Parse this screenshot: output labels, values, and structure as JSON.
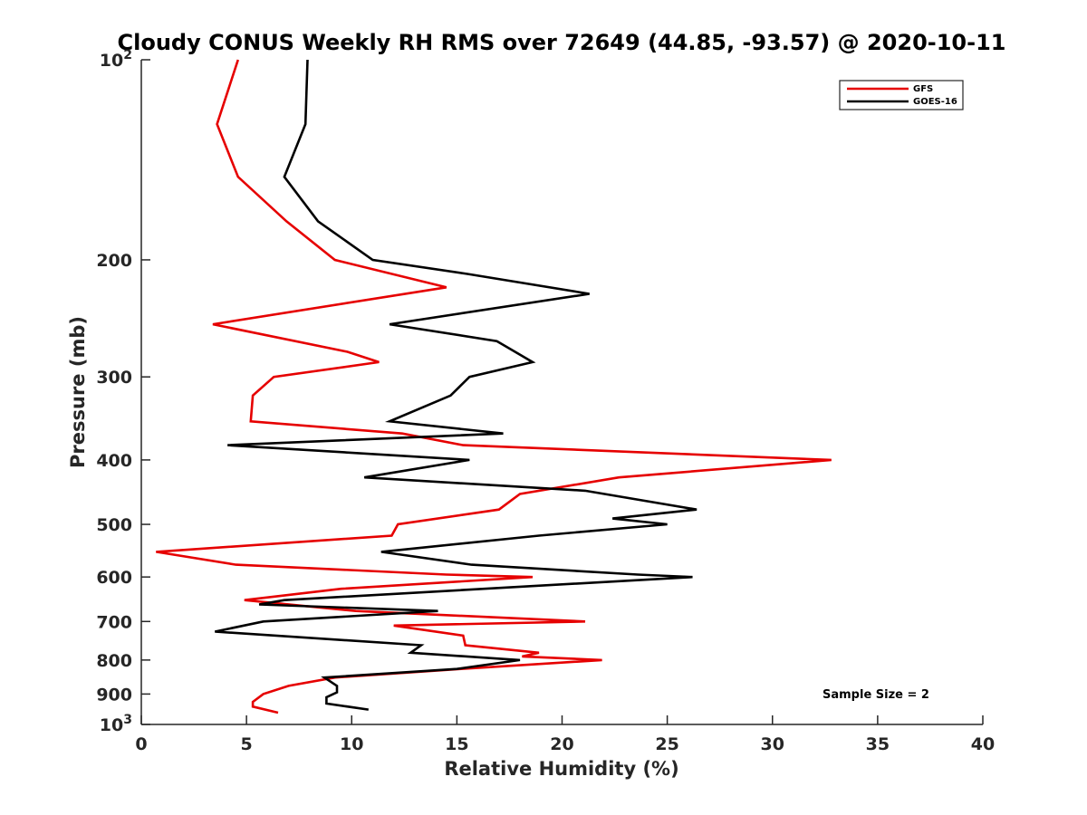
{
  "chart_data": {
    "type": "line",
    "title": "Cloudy CONUS Weekly RH RMS over 72649 (44.85, -93.57) @ 2020-10-11",
    "xlabel": "Relative Humidity (%)",
    "ylabel": "Pressure (mb)",
    "xlim": [
      0,
      40
    ],
    "ylim": [
      100,
      1000
    ],
    "y_scale": "log",
    "y_reversed": true,
    "grid": false,
    "legend_position": "top-right",
    "x_ticks": [
      0,
      5,
      10,
      15,
      20,
      25,
      30,
      35,
      40
    ],
    "x_tick_labels": [
      "0",
      "5",
      "10",
      "15",
      "20",
      "25",
      "30",
      "35",
      "40"
    ],
    "y_ticks": [
      100,
      200,
      300,
      400,
      500,
      600,
      700,
      800,
      900,
      1000
    ],
    "y_tick_labels": [
      {
        "base": "10",
        "exp": "2"
      },
      {
        "base": "200",
        "exp": ""
      },
      {
        "base": "300",
        "exp": ""
      },
      {
        "base": "400",
        "exp": ""
      },
      {
        "base": "500",
        "exp": ""
      },
      {
        "base": "600",
        "exp": ""
      },
      {
        "base": "700",
        "exp": ""
      },
      {
        "base": "800",
        "exp": ""
      },
      {
        "base": "900",
        "exp": ""
      },
      {
        "base": "10",
        "exp": "3"
      }
    ],
    "annotation": "Sample Size = 2",
    "series": [
      {
        "name": "GFS",
        "color": "#e60000",
        "points": [
          [
            4.6,
            100
          ],
          [
            3.6,
            125
          ],
          [
            4.6,
            150
          ],
          [
            6.9,
            175
          ],
          [
            9.2,
            200
          ],
          [
            14.5,
            220
          ],
          [
            3.4,
            250
          ],
          [
            9.8,
            275
          ],
          [
            11.3,
            285
          ],
          [
            6.3,
            300
          ],
          [
            5.3,
            320
          ],
          [
            5.2,
            350
          ],
          [
            12.4,
            365
          ],
          [
            15.3,
            380
          ],
          [
            32.8,
            400
          ],
          [
            22.7,
            425
          ],
          [
            18.0,
            450
          ],
          [
            17.0,
            475
          ],
          [
            12.2,
            500
          ],
          [
            11.9,
            520
          ],
          [
            0.7,
            550
          ],
          [
            4.5,
            575
          ],
          [
            14.5,
            595
          ],
          [
            18.6,
            600
          ],
          [
            9.5,
            625
          ],
          [
            4.9,
            650
          ],
          [
            10.2,
            675
          ],
          [
            21.1,
            700
          ],
          [
            12.0,
            710
          ],
          [
            15.3,
            735
          ],
          [
            15.4,
            760
          ],
          [
            18.9,
            780
          ],
          [
            18.1,
            790
          ],
          [
            21.9,
            800
          ],
          [
            15.2,
            825
          ],
          [
            9.2,
            850
          ],
          [
            7.0,
            875
          ],
          [
            5.8,
            900
          ],
          [
            5.3,
            925
          ],
          [
            5.3,
            940
          ],
          [
            6.5,
            960
          ]
        ]
      },
      {
        "name": "GOES-16",
        "color": "#000000",
        "points": [
          [
            7.9,
            100
          ],
          [
            7.8,
            125
          ],
          [
            6.8,
            150
          ],
          [
            8.4,
            175
          ],
          [
            11.0,
            200
          ],
          [
            15.5,
            210
          ],
          [
            21.3,
            225
          ],
          [
            11.8,
            250
          ],
          [
            16.9,
            265
          ],
          [
            18.6,
            285
          ],
          [
            15.6,
            300
          ],
          [
            14.7,
            320
          ],
          [
            11.8,
            350
          ],
          [
            17.2,
            365
          ],
          [
            4.1,
            380
          ],
          [
            15.6,
            400
          ],
          [
            10.6,
            425
          ],
          [
            21.1,
            445
          ],
          [
            26.4,
            475
          ],
          [
            22.4,
            490
          ],
          [
            25.0,
            500
          ],
          [
            18.9,
            520
          ],
          [
            11.4,
            550
          ],
          [
            15.7,
            575
          ],
          [
            23.6,
            595
          ],
          [
            26.2,
            600
          ],
          [
            6.8,
            650
          ],
          [
            5.6,
            660
          ],
          [
            14.1,
            675
          ],
          [
            5.8,
            700
          ],
          [
            3.5,
            725
          ],
          [
            13.3,
            760
          ],
          [
            12.8,
            780
          ],
          [
            18.0,
            800
          ],
          [
            15.0,
            825
          ],
          [
            8.7,
            850
          ],
          [
            9.3,
            875
          ],
          [
            9.3,
            895
          ],
          [
            8.8,
            910
          ],
          [
            8.8,
            930
          ],
          [
            10.8,
            950
          ]
        ]
      }
    ]
  }
}
